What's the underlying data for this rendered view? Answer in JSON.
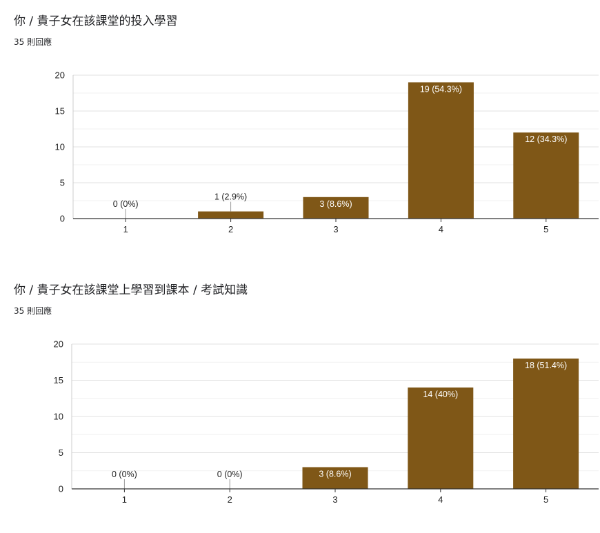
{
  "charts": [
    {
      "title": "你 / 貴子女在該課堂的投入學習",
      "response_count": "35 則回應"
    },
    {
      "title": "你 / 貴子女在該課堂上學習到課本 / 考試知識",
      "response_count": "35 則回應"
    }
  ],
  "colors": {
    "bar": "#7f5717",
    "grid_major": "#e2e2e2",
    "grid_minor": "#f1f1f1",
    "axis": "#333333",
    "label_inside": "#ffffff",
    "label_outside": "#222222"
  },
  "chart_data": [
    {
      "type": "bar",
      "title": "你 / 貴子女在該課堂的投入學習",
      "categories": [
        "1",
        "2",
        "3",
        "4",
        "5"
      ],
      "values": [
        0,
        1,
        3,
        19,
        12
      ],
      "data_labels": [
        "0 (0%)",
        "1 (2.9%)",
        "3 (8.6%)",
        "19 (54.3%)",
        "12 (34.3%)"
      ],
      "yticks": [
        "0",
        "5",
        "10",
        "15",
        "20"
      ],
      "ylim": [
        0,
        20
      ],
      "xlabel": "",
      "ylabel": "",
      "grid": true,
      "legend": "none"
    },
    {
      "type": "bar",
      "title": "你 / 貴子女在該課堂上學習到課本 / 考試知識",
      "categories": [
        "1",
        "2",
        "3",
        "4",
        "5"
      ],
      "values": [
        0,
        0,
        3,
        14,
        18
      ],
      "data_labels": [
        "0 (0%)",
        "0 (0%)",
        "3 (8.6%)",
        "14 (40%)",
        "18 (51.4%)"
      ],
      "yticks": [
        "0",
        "5",
        "10",
        "15",
        "20"
      ],
      "ylim": [
        0,
        20
      ],
      "xlabel": "",
      "ylabel": "",
      "grid": true,
      "legend": "none"
    }
  ]
}
